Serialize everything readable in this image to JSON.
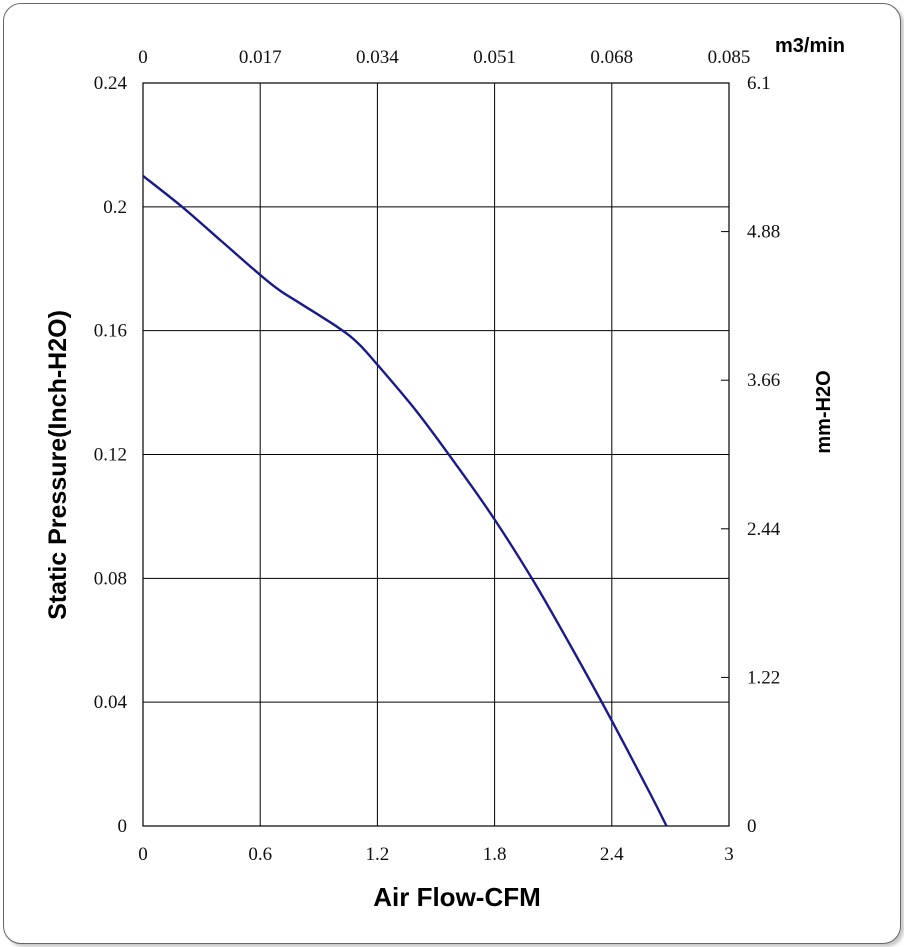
{
  "chart_data": {
    "type": "line",
    "title": "",
    "xlabel": "Air Flow-CFM",
    "ylabel": "Static Pressure(Inch-H2O)",
    "x2label": "m3/min",
    "y2label": "mm-H2O",
    "xlim": [
      0,
      3
    ],
    "ylim": [
      0,
      0.24
    ],
    "grid": true,
    "x_ticks": [
      "0",
      "0.6",
      "1.2",
      "1.8",
      "2.4",
      "3"
    ],
    "y_ticks": [
      "0",
      "0.04",
      "0.08",
      "0.12",
      "0.16",
      "0.2",
      "0.24"
    ],
    "x2_ticks": [
      "0",
      "0.017",
      "0.034",
      "0.051",
      "0.068",
      "0.085"
    ],
    "y2_ticks": [
      "0",
      "1.22",
      "2.44",
      "3.66",
      "4.88",
      "6.1"
    ],
    "series": [
      {
        "color": "#1a1a8c",
        "x": [
          0,
          0.2,
          0.4,
          0.6,
          0.7,
          0.8,
          1.0,
          1.1,
          1.2,
          1.4,
          1.6,
          1.8,
          2.0,
          2.2,
          2.4,
          2.6,
          2.68
        ],
        "y": [
          0.21,
          0.2,
          0.189,
          0.178,
          0.173,
          0.169,
          0.161,
          0.156,
          0.149,
          0.134,
          0.117,
          0.099,
          0.079,
          0.057,
          0.034,
          0.01,
          0
        ]
      }
    ]
  }
}
